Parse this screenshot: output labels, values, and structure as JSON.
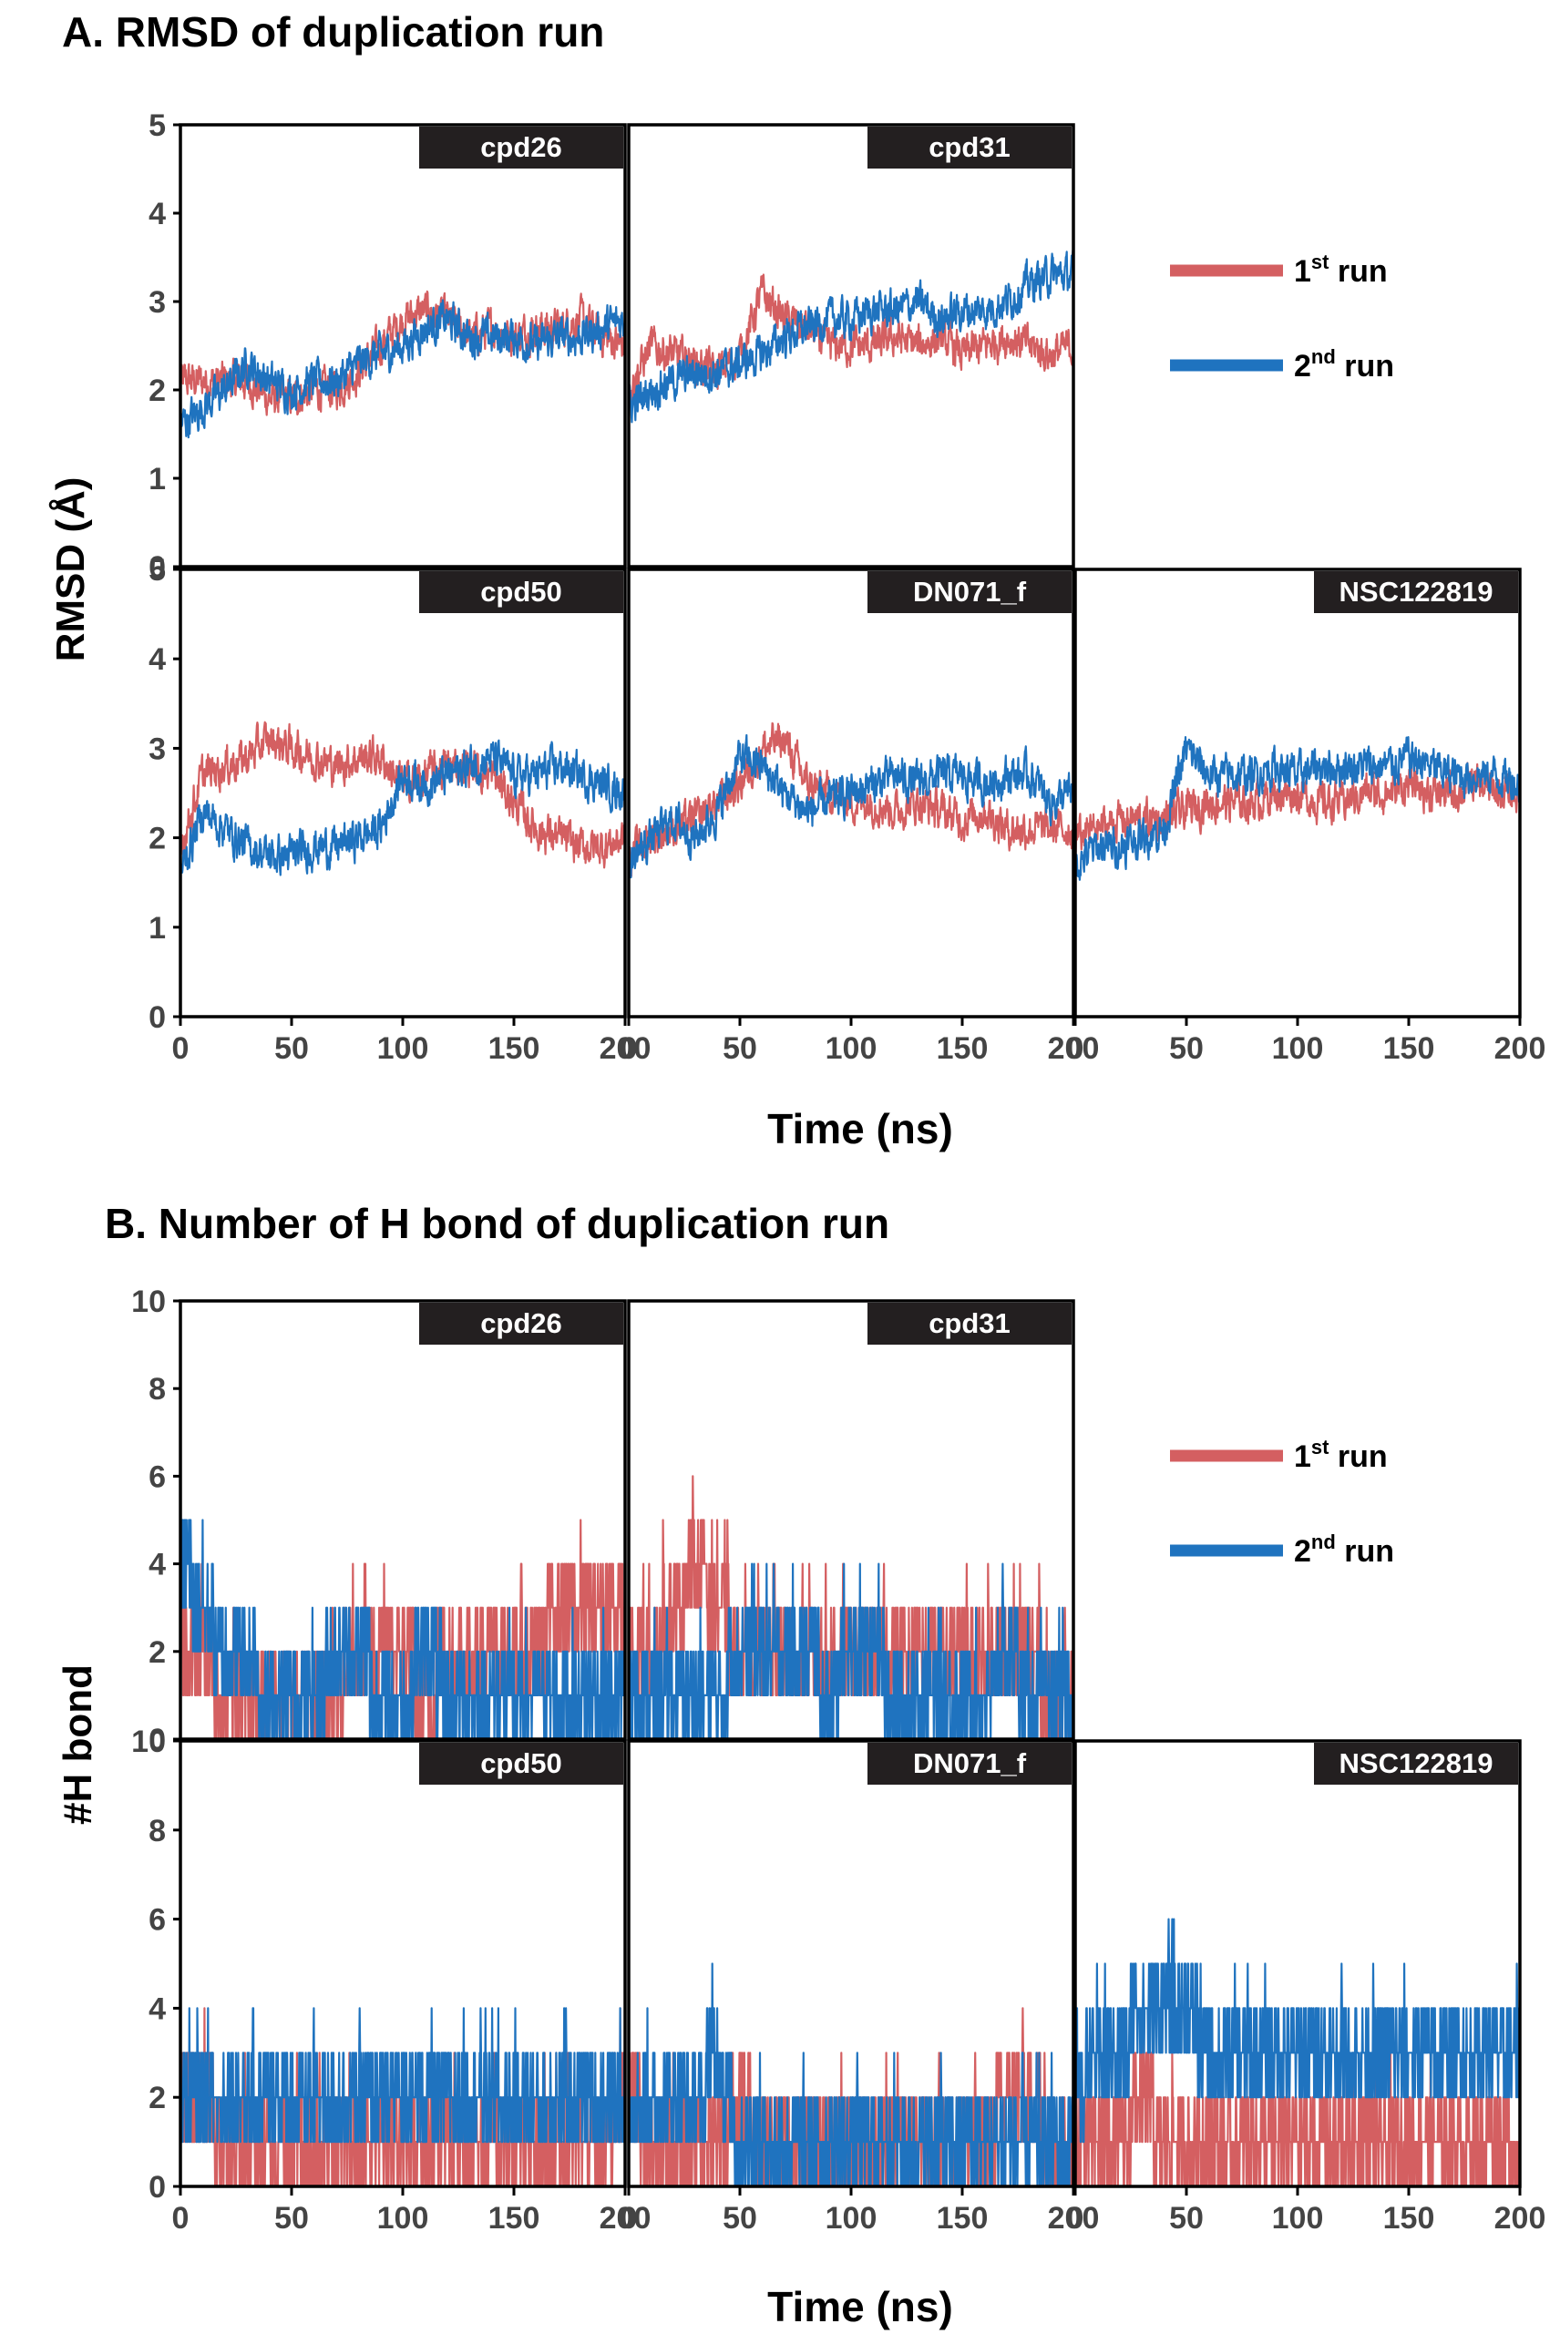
{
  "panels": [
    {
      "title": "A.  RMSD of duplication run",
      "ylabel": "RMSD (Å)",
      "xlabel": "Time (ns)"
    },
    {
      "title": "B. Number of H bond of duplication run",
      "ylabel": "#H bond",
      "xlabel": "Time (ns)"
    }
  ],
  "legend": {
    "run1": {
      "label": "1",
      "sup": "st",
      "suffix": " run",
      "color": "#d45f61"
    },
    "run2": {
      "label": "2",
      "sup": "nd",
      "suffix": " run",
      "color": "#1f73bf"
    }
  },
  "colors": {
    "run1": "#d45f61",
    "run2": "#1f73bf",
    "tag_bg": "#231f20",
    "tag_text": "#ffffff"
  },
  "chart_data": [
    {
      "type": "line",
      "title": "A.  RMSD of duplication run",
      "xlabel": "Time (ns)",
      "ylabel": "RMSD (Å)",
      "xlim": [
        0,
        200
      ],
      "ylim": [
        0,
        5
      ],
      "xticks": [
        0,
        50,
        100,
        150,
        200
      ],
      "xtick_labels": [
        "0",
        "50",
        "100",
        "150",
        "200"
      ],
      "yticks": [
        0,
        1,
        2,
        3,
        4,
        5
      ],
      "ytick_labels": [
        "0",
        "1",
        "2",
        "3",
        "4",
        "5"
      ],
      "grid": false,
      "legend_position": "right of top row",
      "x_step": 10,
      "subplots": [
        {
          "name": "cpd26",
          "row": 0,
          "col": 0,
          "series": [
            {
              "name": "1st run",
              "values": [
                2.1,
                2.1,
                2.1,
                2.1,
                1.9,
                1.9,
                2.0,
                2.0,
                2.2,
                2.5,
                2.8,
                2.9,
                2.8,
                2.6,
                2.7,
                2.6,
                2.7,
                2.7,
                2.8,
                2.6,
                2.5
              ]
            },
            {
              "name": "2nd run",
              "values": [
                1.6,
                1.8,
                2.0,
                2.3,
                2.1,
                2.0,
                2.1,
                2.1,
                2.3,
                2.4,
                2.5,
                2.7,
                2.8,
                2.6,
                2.6,
                2.6,
                2.5,
                2.6,
                2.6,
                2.7,
                2.8
              ]
            }
          ]
        },
        {
          "name": "cpd31",
          "row": 0,
          "col": 1,
          "series": [
            {
              "name": "1st run",
              "values": [
                2.0,
                2.5,
                2.4,
                2.3,
                2.2,
                2.4,
                3.1,
                2.8,
                2.7,
                2.5,
                2.5,
                2.5,
                2.6,
                2.5,
                2.6,
                2.4,
                2.5,
                2.6,
                2.5,
                2.4,
                2.5
              ]
            },
            {
              "name": "2nd run",
              "values": [
                1.8,
                2.0,
                2.1,
                2.2,
                2.2,
                2.3,
                2.4,
                2.6,
                2.7,
                2.8,
                2.8,
                2.9,
                2.9,
                3.0,
                2.8,
                2.9,
                2.9,
                3.0,
                3.2,
                3.3,
                3.3
              ]
            }
          ]
        },
        {
          "name": "cpd50",
          "row": 1,
          "col": 0,
          "series": [
            {
              "name": "1st run",
              "values": [
                1.9,
                2.7,
                2.8,
                2.9,
                3.1,
                3.0,
                2.9,
                2.8,
                2.9,
                2.9,
                2.6,
                2.7,
                2.8,
                2.8,
                2.7,
                2.4,
                2.1,
                2.0,
                1.9,
                1.9,
                2.0
              ]
            },
            {
              "name": "2nd run",
              "values": [
                1.6,
                2.3,
                2.1,
                1.9,
                1.8,
                1.8,
                1.9,
                1.9,
                2.0,
                2.1,
                2.7,
                2.6,
                2.7,
                2.8,
                2.9,
                2.7,
                2.7,
                2.8,
                2.7,
                2.6,
                2.5
              ]
            }
          ]
        },
        {
          "name": "DN071_f",
          "row": 1,
          "col": 1,
          "series": [
            {
              "name": "1st run",
              "values": [
                1.8,
                2.0,
                2.1,
                2.2,
                2.4,
                2.6,
                3.0,
                3.1,
                2.6,
                2.5,
                2.4,
                2.4,
                2.3,
                2.4,
                2.3,
                2.2,
                2.3,
                2.1,
                2.1,
                2.1,
                2.1
              ]
            },
            {
              "name": "2nd run",
              "values": [
                1.7,
                2.0,
                2.2,
                2.0,
                2.3,
                2.9,
                2.8,
                2.5,
                2.3,
                2.4,
                2.5,
                2.6,
                2.7,
                2.6,
                2.7,
                2.7,
                2.6,
                2.7,
                2.7,
                2.4,
                2.5
              ]
            }
          ]
        },
        {
          "name": "NSC122819",
          "row": 1,
          "col": 2,
          "series": [
            {
              "name": "1st run",
              "values": [
                2.0,
                2.1,
                2.2,
                2.2,
                2.2,
                2.3,
                2.4,
                2.4,
                2.4,
                2.5,
                2.5,
                2.4,
                2.4,
                2.5,
                2.5,
                2.6,
                2.5,
                2.5,
                2.6,
                2.5,
                2.5
              ]
            },
            {
              "name": "2nd run",
              "values": [
                1.7,
                1.9,
                1.9,
                2.0,
                2.1,
                3.0,
                2.7,
                2.7,
                2.7,
                2.8,
                2.7,
                2.8,
                2.8,
                2.8,
                2.8,
                2.9,
                2.8,
                2.7,
                2.7,
                2.7,
                2.6
              ]
            }
          ]
        }
      ]
    },
    {
      "type": "line",
      "title": "B. Number of H bond of duplication run",
      "xlabel": "Time (ns)",
      "ylabel": "#H bond",
      "xlim": [
        0,
        200
      ],
      "ylim": [
        0,
        10
      ],
      "xticks": [
        0,
        50,
        100,
        150,
        200
      ],
      "xtick_labels": [
        "0",
        "50",
        "100",
        "150",
        "200"
      ],
      "yticks": [
        0,
        2,
        4,
        6,
        8,
        10
      ],
      "ytick_labels": [
        "0",
        "2",
        "4",
        "6",
        "8",
        "10"
      ],
      "grid": false,
      "legend_position": "right of top row",
      "x_step": 10,
      "subplots": [
        {
          "name": "cpd26",
          "row": 0,
          "col": 0,
          "series": [
            {
              "name": "1st run",
              "values": [
                2,
                2,
                1,
                1,
                1,
                1,
                1,
                1,
                2,
                2,
                2,
                1,
                2,
                2,
                2,
                2,
                2,
                3,
                3,
                3,
                3
              ]
            },
            {
              "name": "2nd run",
              "values": [
                4,
                3,
                2,
                2,
                1,
                1,
                1,
                2,
                2,
                1,
                1,
                2,
                1,
                1,
                1,
                1,
                1,
                1,
                1,
                1,
                1
              ]
            }
          ]
        },
        {
          "name": "cpd31",
          "row": 0,
          "col": 1,
          "series": [
            {
              "name": "1st run",
              "values": [
                2,
                2,
                3,
                4,
                3,
                2,
                2,
                2,
                2,
                2,
                2,
                2,
                2,
                2,
                2,
                2,
                2,
                2,
                2,
                1,
                1
              ]
            },
            {
              "name": "2nd run",
              "values": [
                1,
                1,
                1,
                1,
                1,
                2,
                2,
                2,
                2,
                1,
                2,
                2,
                1,
                1,
                1,
                1,
                1,
                2,
                1,
                1,
                1
              ]
            }
          ]
        },
        {
          "name": "cpd50",
          "row": 1,
          "col": 0,
          "series": [
            {
              "name": "1st run",
              "values": [
                2,
                2,
                1,
                1,
                1,
                1,
                1,
                1,
                1,
                1,
                1,
                1,
                1,
                1,
                1,
                1,
                1,
                1,
                1,
                1,
                2
              ]
            },
            {
              "name": "2nd run",
              "values": [
                2,
                2,
                2,
                2,
                2,
                2,
                2,
                2,
                2,
                2,
                2,
                2,
                2,
                2,
                2,
                2,
                2,
                2,
                2,
                2,
                2
              ]
            }
          ]
        },
        {
          "name": "DN071_f",
          "row": 1,
          "col": 1,
          "series": [
            {
              "name": "1st run",
              "values": [
                2,
                1,
                1,
                1,
                1,
                2,
                1,
                1,
                1,
                1,
                1,
                1,
                1,
                1,
                1,
                1,
                1,
                2,
                2,
                1,
                1
              ]
            },
            {
              "name": "2nd run",
              "values": [
                2,
                2,
                2,
                2,
                3,
                1,
                1,
                1,
                1,
                1,
                1,
                1,
                1,
                1,
                1,
                1,
                1,
                1,
                1,
                1,
                1
              ]
            }
          ]
        },
        {
          "name": "NSC122819",
          "row": 1,
          "col": 2,
          "series": [
            {
              "name": "1st run",
              "values": [
                1,
                1,
                1,
                2,
                1,
                1,
                1,
                1,
                1,
                1,
                1,
                1,
                1,
                1,
                1,
                1,
                1,
                1,
                1,
                1,
                1
              ]
            },
            {
              "name": "2nd run",
              "values": [
                2,
                3,
                3,
                4,
                4,
                4,
                3,
                3,
                3,
                3,
                3,
                3,
                3,
                3,
                3,
                3,
                3,
                3,
                3,
                3,
                3
              ]
            }
          ]
        }
      ]
    }
  ]
}
